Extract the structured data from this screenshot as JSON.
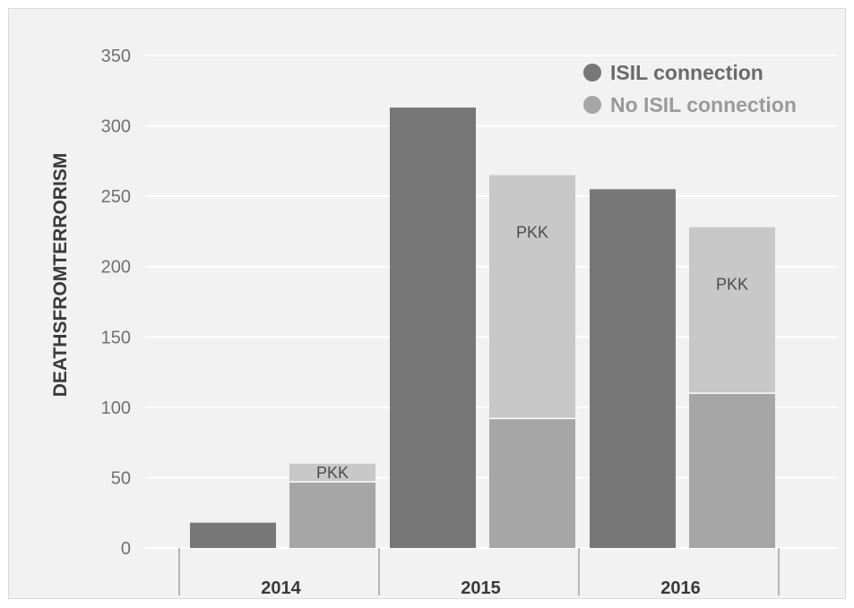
{
  "chart_data": {
    "type": "bar",
    "title": "",
    "xlabel": "",
    "ylabel": "DEATHSFROMTERRORISM",
    "categories": [
      "2014",
      "2015",
      "2016"
    ],
    "ylim": [
      0,
      350
    ],
    "yticks": [
      0,
      50,
      100,
      150,
      200,
      250,
      300,
      350
    ],
    "grid": true,
    "legend_position": "top-right",
    "series": [
      {
        "name": "ISIL connection",
        "color": "#777777",
        "values": [
          18,
          313,
          255
        ]
      },
      {
        "name": "No ISIL connection",
        "color": "#a6a6a6",
        "stacked_segments": [
          {
            "value": 47,
            "label": ""
          },
          {
            "value": 13,
            "label": "PKK"
          },
          {
            "value": 92,
            "label": ""
          },
          {
            "value": 173,
            "label": "PKK"
          },
          {
            "value": 110,
            "label": ""
          },
          {
            "value": 118,
            "label": "PKK"
          }
        ],
        "values": [
          60,
          265,
          228
        ],
        "segments_by_category": [
          [
            {
              "value": 47,
              "label": ""
            },
            {
              "value": 13,
              "label": "PKK"
            }
          ],
          [
            {
              "value": 92,
              "label": ""
            },
            {
              "value": 173,
              "label": "PKK"
            }
          ],
          [
            {
              "value": 110,
              "label": ""
            },
            {
              "value": 118,
              "label": "PKK"
            }
          ]
        ]
      }
    ],
    "pkk_segment_color": "#c8c8c8"
  }
}
